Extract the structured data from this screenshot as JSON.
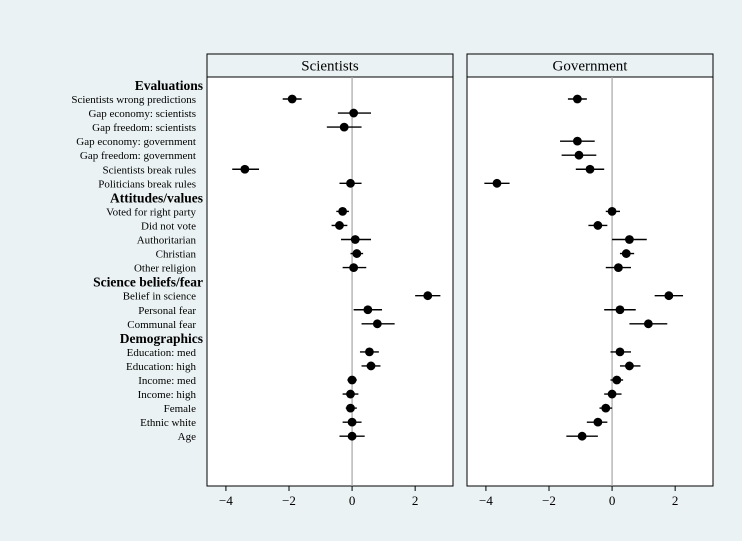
{
  "chart_data": {
    "type": "scatter",
    "subtype": "coefficient-plot",
    "panels": [
      {
        "name": "Scientists"
      },
      {
        "name": "Government"
      }
    ],
    "xlim": [
      -4.6,
      3.2
    ],
    "xticks": [
      -4,
      -2,
      0,
      2
    ],
    "xtick_labels": [
      "−4",
      "−2",
      "0",
      "2"
    ],
    "reference_line": 0,
    "colors": {
      "background": "#eaf2f3",
      "plot": "#ffffff",
      "header": "#eaf2f3",
      "marker": "#000000",
      "refline": "#a6a6a6"
    },
    "groups": [
      {
        "heading": "Evaluations",
        "rows": [
          {
            "label": "Scientists wrong predictions",
            "sci": [
              -1.9,
              -2.2,
              -1.6
            ],
            "gov": [
              -1.1,
              -1.4,
              -0.8
            ]
          },
          {
            "label": "Gap economy: scientists",
            "sci": [
              0.05,
              -0.45,
              0.6
            ],
            "gov": null
          },
          {
            "label": "Gap freedom: scientists",
            "sci": [
              -0.25,
              -0.8,
              0.3
            ],
            "gov": null
          },
          {
            "label": "Gap economy: government",
            "sci": null,
            "gov": [
              -1.1,
              -1.65,
              -0.55
            ]
          },
          {
            "label": "Gap freedom: government",
            "sci": null,
            "gov": [
              -1.05,
              -1.6,
              -0.5
            ]
          },
          {
            "label": "Scientists break rules",
            "sci": [
              -3.4,
              -3.8,
              -2.95
            ],
            "gov": [
              -0.7,
              -1.15,
              -0.25
            ]
          },
          {
            "label": "Politicians break rules",
            "sci": [
              -0.05,
              -0.4,
              0.3
            ],
            "gov": [
              -3.65,
              -4.05,
              -3.25
            ]
          }
        ]
      },
      {
        "heading": "Attitudes/values",
        "rows": [
          {
            "label": "Voted for right party",
            "sci": [
              -0.3,
              -0.5,
              -0.1
            ],
            "gov": [
              0.0,
              -0.2,
              0.25
            ]
          },
          {
            "label": "Did not vote",
            "sci": [
              -0.4,
              -0.65,
              -0.15
            ],
            "gov": [
              -0.45,
              -0.75,
              -0.15
            ]
          },
          {
            "label": "Authoritarian",
            "sci": [
              0.1,
              -0.35,
              0.6
            ],
            "gov": [
              0.55,
              0.0,
              1.1
            ]
          },
          {
            "label": "Christian",
            "sci": [
              0.15,
              -0.05,
              0.35
            ],
            "gov": [
              0.45,
              0.25,
              0.7
            ]
          },
          {
            "label": "Other religion",
            "sci": [
              0.05,
              -0.3,
              0.45
            ],
            "gov": [
              0.2,
              -0.2,
              0.6
            ]
          }
        ]
      },
      {
        "heading": "Science beliefs/fear",
        "rows": [
          {
            "label": "Belief in science",
            "sci": [
              2.4,
              2.0,
              2.8
            ],
            "gov": [
              1.8,
              1.35,
              2.25
            ]
          },
          {
            "label": "Personal fear",
            "sci": [
              0.5,
              0.05,
              0.95
            ],
            "gov": [
              0.25,
              -0.25,
              0.75
            ]
          },
          {
            "label": "Communal fear",
            "sci": [
              0.8,
              0.3,
              1.35
            ],
            "gov": [
              1.15,
              0.55,
              1.75
            ]
          }
        ]
      },
      {
        "heading": "Demographics",
        "rows": [
          {
            "label": "Education: med",
            "sci": [
              0.55,
              0.25,
              0.85
            ],
            "gov": [
              0.25,
              -0.05,
              0.6
            ]
          },
          {
            "label": "Education: high",
            "sci": [
              0.6,
              0.3,
              0.9
            ],
            "gov": [
              0.55,
              0.25,
              0.9
            ]
          },
          {
            "label": "Income: med",
            "sci": [
              0.0,
              -0.15,
              0.15
            ],
            "gov": [
              0.15,
              -0.05,
              0.35
            ]
          },
          {
            "label": "Income: high",
            "sci": [
              -0.05,
              -0.3,
              0.2
            ],
            "gov": [
              0.0,
              -0.25,
              0.3
            ]
          },
          {
            "label": "Female",
            "sci": [
              -0.05,
              -0.2,
              0.15
            ],
            "gov": [
              -0.2,
              -0.4,
              0.0
            ]
          },
          {
            "label": "Ethnic white",
            "sci": [
              0.0,
              -0.3,
              0.3
            ],
            "gov": [
              -0.45,
              -0.8,
              -0.15
            ]
          },
          {
            "label": "Age",
            "sci": [
              0.0,
              -0.4,
              0.4
            ],
            "gov": [
              -0.95,
              -1.45,
              -0.45
            ]
          }
        ]
      }
    ]
  }
}
